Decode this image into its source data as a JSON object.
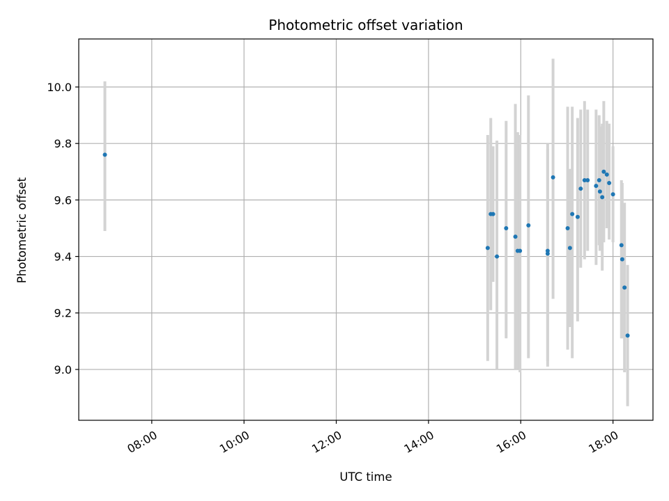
{
  "chart_data": {
    "type": "scatter",
    "title": "Photometric offset variation",
    "xlabel": "UTC time",
    "ylabel": "Photometric offset",
    "x_axis": "time",
    "xlim": [
      "06:25",
      "18:52"
    ],
    "ylim": [
      8.82,
      10.17
    ],
    "xticks": [
      "08:00",
      "10:00",
      "12:00",
      "14:00",
      "16:00",
      "18:00"
    ],
    "yticks": [
      "9.0",
      "9.2",
      "9.4",
      "9.6",
      "9.8",
      "10.0"
    ],
    "grid": true,
    "colors": {
      "points": "#1f77b4",
      "error_bars": "#d3d3d3",
      "grid": "#b0b0b0"
    },
    "points": [
      {
        "x": "06:59",
        "y": 9.76,
        "yerr_low": 9.49,
        "yerr_high": 10.02
      },
      {
        "x": "15:17",
        "y": 9.43,
        "yerr_low": 9.03,
        "yerr_high": 9.83
      },
      {
        "x": "15:21",
        "y": 9.55,
        "yerr_low": 9.21,
        "yerr_high": 9.89
      },
      {
        "x": "15:24",
        "y": 9.55,
        "yerr_low": 9.31,
        "yerr_high": 9.79
      },
      {
        "x": "15:29",
        "y": 9.4,
        "yerr_low": 9.0,
        "yerr_high": 9.81
      },
      {
        "x": "15:41",
        "y": 9.5,
        "yerr_low": 9.11,
        "yerr_high": 9.88
      },
      {
        "x": "15:53",
        "y": 9.47,
        "yerr_low": 9.0,
        "yerr_high": 9.94
      },
      {
        "x": "15:56",
        "y": 9.42,
        "yerr_low": 9.0,
        "yerr_high": 9.84
      },
      {
        "x": "15:59",
        "y": 9.42,
        "yerr_low": 8.99,
        "yerr_high": 9.83
      },
      {
        "x": "16:10",
        "y": 9.51,
        "yerr_low": 9.04,
        "yerr_high": 9.97
      },
      {
        "x": "16:35",
        "y": 9.42,
        "yerr_low": 9.01,
        "yerr_high": 9.8
      },
      {
        "x": "16:35",
        "y": 9.41,
        "yerr_low": 9.03,
        "yerr_high": 9.78
      },
      {
        "x": "16:42",
        "y": 9.68,
        "yerr_low": 9.25,
        "yerr_high": 10.1
      },
      {
        "x": "17:01",
        "y": 9.5,
        "yerr_low": 9.07,
        "yerr_high": 9.93
      },
      {
        "x": "17:04",
        "y": 9.43,
        "yerr_low": 9.15,
        "yerr_high": 9.71
      },
      {
        "x": "17:07",
        "y": 9.55,
        "yerr_low": 9.04,
        "yerr_high": 9.93
      },
      {
        "x": "17:14",
        "y": 9.54,
        "yerr_low": 9.17,
        "yerr_high": 9.89
      },
      {
        "x": "17:18",
        "y": 9.64,
        "yerr_low": 9.36,
        "yerr_high": 9.92
      },
      {
        "x": "17:23",
        "y": 9.67,
        "yerr_low": 9.39,
        "yerr_high": 9.95
      },
      {
        "x": "17:27",
        "y": 9.67,
        "yerr_low": 9.42,
        "yerr_high": 9.92
      },
      {
        "x": "17:38",
        "y": 9.65,
        "yerr_low": 9.37,
        "yerr_high": 9.92
      },
      {
        "x": "17:42",
        "y": 9.67,
        "yerr_low": 9.44,
        "yerr_high": 9.9
      },
      {
        "x": "17:43",
        "y": 9.63,
        "yerr_low": 9.42,
        "yerr_high": 9.86
      },
      {
        "x": "17:46",
        "y": 9.61,
        "yerr_low": 9.35,
        "yerr_high": 9.87
      },
      {
        "x": "17:48",
        "y": 9.7,
        "yerr_low": 9.45,
        "yerr_high": 9.95
      },
      {
        "x": "17:52",
        "y": 9.69,
        "yerr_low": 9.5,
        "yerr_high": 9.88
      },
      {
        "x": "17:55",
        "y": 9.66,
        "yerr_low": 9.46,
        "yerr_high": 9.87
      },
      {
        "x": "18:00",
        "y": 9.62,
        "yerr_low": 9.45,
        "yerr_high": 9.79
      },
      {
        "x": "18:11",
        "y": 9.44,
        "yerr_low": 9.11,
        "yerr_high": 9.67
      },
      {
        "x": "18:12",
        "y": 9.39,
        "yerr_low": 9.11,
        "yerr_high": 9.66
      },
      {
        "x": "18:15",
        "y": 9.29,
        "yerr_low": 8.99,
        "yerr_high": 9.59
      },
      {
        "x": "18:19",
        "y": 9.12,
        "yerr_low": 8.87,
        "yerr_high": 9.37
      }
    ]
  }
}
